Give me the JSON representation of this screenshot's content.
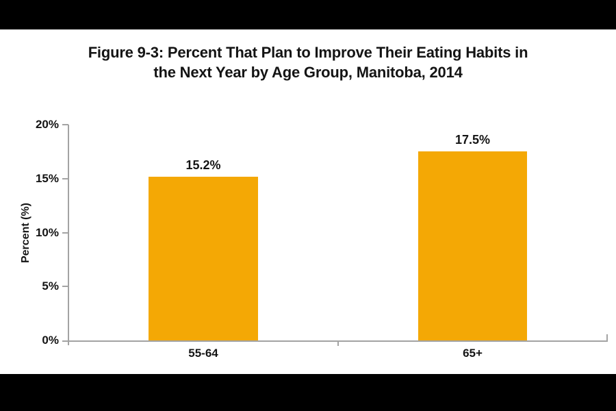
{
  "chart_data": {
    "type": "bar",
    "title": "Figure 9-3: Percent That Plan to Improve Their Eating Habits in the Next Year by Age Group, Manitoba, 2014",
    "title_lines": [
      "Figure 9-3: Percent That Plan to Improve Their Eating Habits in",
      "the Next Year by Age Group, Manitoba, 2014"
    ],
    "categories": [
      "55-64",
      "65+"
    ],
    "values": [
      15.2,
      17.5
    ],
    "data_labels": [
      "15.2%",
      "17.5%"
    ],
    "ylabel": "Percent (%)",
    "xlabel": "",
    "ylim": [
      0,
      20
    ],
    "ytick_labels": [
      "20%",
      "15%",
      "10%",
      "5%",
      "0%"
    ],
    "ytick_values": [
      20,
      15,
      10,
      5,
      0
    ],
    "grid": false,
    "legend": "none",
    "bar_color": "#F4A805",
    "axis_color": "#A3A3A3",
    "text_color": "#141414",
    "background_color": "#FFFFFF",
    "letterbox_color": "#000000"
  }
}
